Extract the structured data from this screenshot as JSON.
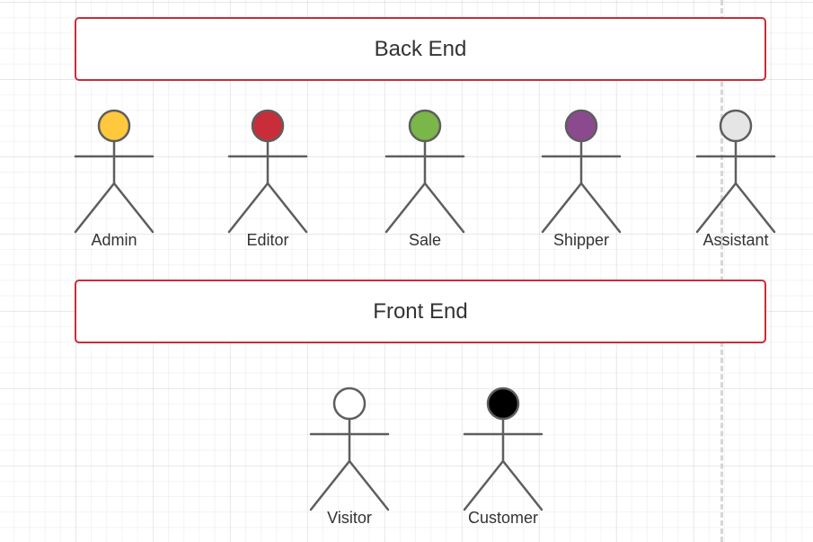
{
  "diagram": {
    "sections": {
      "back_end": {
        "label": "Back End"
      },
      "front_end": {
        "label": "Front End"
      }
    },
    "actors": [
      {
        "id": "admin",
        "label": "Admin",
        "head_color": "#ffc83d"
      },
      {
        "id": "editor",
        "label": "Editor",
        "head_color": "#c92d39"
      },
      {
        "id": "sale",
        "label": "Sale",
        "head_color": "#7ab648"
      },
      {
        "id": "shipper",
        "label": "Shipper",
        "head_color": "#8c4a8e"
      },
      {
        "id": "assistant",
        "label": "Assistant",
        "head_color": "#e5e5e5"
      },
      {
        "id": "visitor",
        "label": "Visitor",
        "head_color": "#ffffff"
      },
      {
        "id": "customer",
        "label": "Customer",
        "head_color": "#000000"
      }
    ],
    "colors": {
      "box_border": "#c92d39",
      "stick_figure": "#5e5e5e",
      "text": "#333333"
    }
  }
}
